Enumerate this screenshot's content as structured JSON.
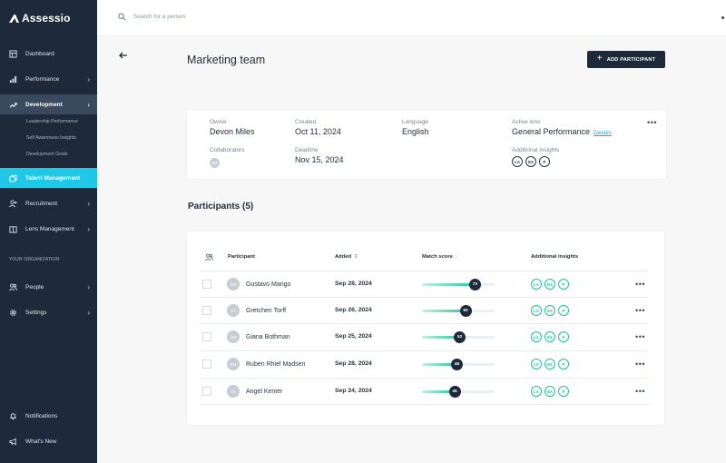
{
  "brand": {
    "name": "Assessio"
  },
  "sidebar": {
    "items": [
      {
        "label": "Dashboard",
        "icon": "dashboard-icon"
      },
      {
        "label": "Performance",
        "icon": "bar-chart-icon"
      },
      {
        "label": "Development",
        "icon": "trend-up-icon"
      },
      {
        "label": "Talent Management",
        "icon": "layers-icon"
      },
      {
        "label": "Recruitment",
        "icon": "user-add-icon"
      },
      {
        "label": "Lens Management",
        "icon": "book-icon"
      },
      {
        "label": "People",
        "icon": "people-icon"
      },
      {
        "label": "Settings",
        "icon": "gear-icon"
      },
      {
        "label": "Notifications",
        "icon": "bell-icon"
      },
      {
        "label": "What's New",
        "icon": "megaphone-icon"
      }
    ],
    "development_sub": [
      "Leadership Performance",
      "Self Awareness Insights",
      "Development Goals"
    ],
    "section_label": "YOUR ORGANIZATION"
  },
  "topbar": {
    "search_placeholder": "Search for a person"
  },
  "page": {
    "title": "Marketing team",
    "add_button": "ADD PARTICIPANT"
  },
  "info": {
    "owner_label": "Owner",
    "owner": "Devon Miles",
    "created_label": "Created",
    "created": "Oct 11, 2024",
    "language_label": "Language",
    "language": "English",
    "lens_label": "Active lens",
    "lens": "General Performance",
    "lens_link": "Details",
    "collaborators_label": "Collaborators",
    "collaborator_initials": "DM",
    "deadline_label": "Deadline",
    "deadline": "Nov 15, 2024",
    "insights_label": "Additional insights",
    "insights": [
      "LA",
      "EX",
      "P"
    ]
  },
  "participants": {
    "title": "Participants (5)",
    "headers": {
      "participant": "Participant",
      "added": "Added",
      "added_sort": "⇕",
      "score": "Match score",
      "score_sort": "↓",
      "insights": "Additional insights"
    },
    "rows": [
      {
        "initials": "GM",
        "name": "Gustavo Mango",
        "added": "Sep 28, 2024",
        "score": 73,
        "insights": [
          "LA",
          "EX",
          "P"
        ]
      },
      {
        "initials": "GT",
        "name": "Gretchen Torff",
        "added": "Sep 26, 2024",
        "score": 60,
        "insights": [
          "LA",
          "EX",
          "P"
        ]
      },
      {
        "initials": "GB",
        "name": "Giana Bothman",
        "added": "Sep 25, 2024",
        "score": 52,
        "insights": [
          "LA",
          "EX",
          "P"
        ]
      },
      {
        "initials": "RM",
        "name": "Ruben Rhiel Madsen",
        "added": "Sep 28, 2024",
        "score": 48,
        "insights": [
          "LA",
          "EX",
          "P"
        ]
      },
      {
        "initials": "AK",
        "name": "Angel Kenter",
        "added": "Sep 24, 2024",
        "score": 45,
        "insights": [
          "LA",
          "EX",
          "P"
        ]
      }
    ]
  },
  "colors": {
    "sidebar": "#1e2a3a",
    "accent": "#1ec8e6",
    "score": "#29c79b",
    "link": "#1ea8e0"
  }
}
